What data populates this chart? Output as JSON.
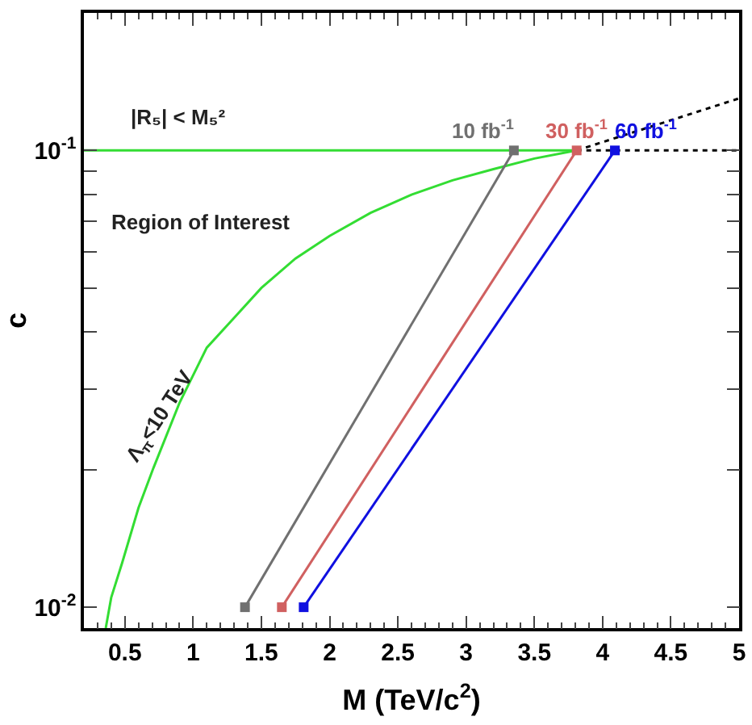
{
  "chart_data": {
    "type": "line",
    "xlabel": "M (TeV/c$^{2}$)",
    "ylabel": "c",
    "log": "y",
    "legend": false,
    "xlim": [
      0.2,
      5
    ],
    "xticks": [
      0.5,
      1,
      1.5,
      2,
      2.5,
      3,
      3.5,
      4,
      4.5,
      5
    ],
    "ylim": [
      0.009,
      0.2
    ],
    "yticks": [
      {
        "value": 0.01,
        "label": "10$^{-2}$"
      },
      {
        "value": 0.1,
        "label": "10$^{-1}$"
      }
    ],
    "series": [
      {
        "color": "#33dd33",
        "x": [
          0.2,
          3.81
        ],
        "values": [
          0.1,
          0.1
        ],
        "marker": "none",
        "line_style": "solid"
      },
      {
        "color": "#33dd33",
        "x": [
          0.36,
          0.4,
          0.48,
          0.6,
          0.71,
          0.9,
          1.1,
          1.3,
          1.5,
          1.75,
          2.0,
          2.3,
          2.6,
          2.9,
          3.2,
          3.5,
          3.81
        ],
        "values": [
          0.009,
          0.0105,
          0.0125,
          0.0165,
          0.0202,
          0.028,
          0.037,
          0.043,
          0.05,
          0.058,
          0.065,
          0.073,
          0.08,
          0.086,
          0.091,
          0.096,
          0.1
        ],
        "marker": "none",
        "line_style": "solid"
      },
      {
        "color": "#000000",
        "x": [
          3.81,
          5
        ],
        "values": [
          0.1,
          0.1
        ],
        "marker": "none",
        "line_style": "dotted"
      },
      {
        "color": "#000000",
        "x": [
          3.81,
          5
        ],
        "values": [
          0.1,
          0.13
        ],
        "marker": "none",
        "line_style": "dotted"
      },
      {
        "name": "10 fb$^{-1}$",
        "color": "#707070",
        "x": [
          1.38,
          3.35
        ],
        "values": [
          0.01,
          0.1
        ],
        "marker": "square",
        "line_style": "solid"
      },
      {
        "name": "30 fb$^{-1}$",
        "color": "#d06060",
        "x": [
          1.65,
          3.81
        ],
        "values": [
          0.01,
          0.1
        ],
        "marker": "square",
        "line_style": "solid"
      },
      {
        "name": "60 fb$^{-1}$",
        "color": "#1010e0",
        "x": [
          1.81,
          4.09
        ],
        "values": [
          0.01,
          0.1
        ],
        "marker": "square",
        "line_style": "solid"
      }
    ],
    "annotations": [
      "|R₅| < M₅²",
      "Region of Interest",
      "Λ$_{π}$<10 TeV"
    ]
  }
}
